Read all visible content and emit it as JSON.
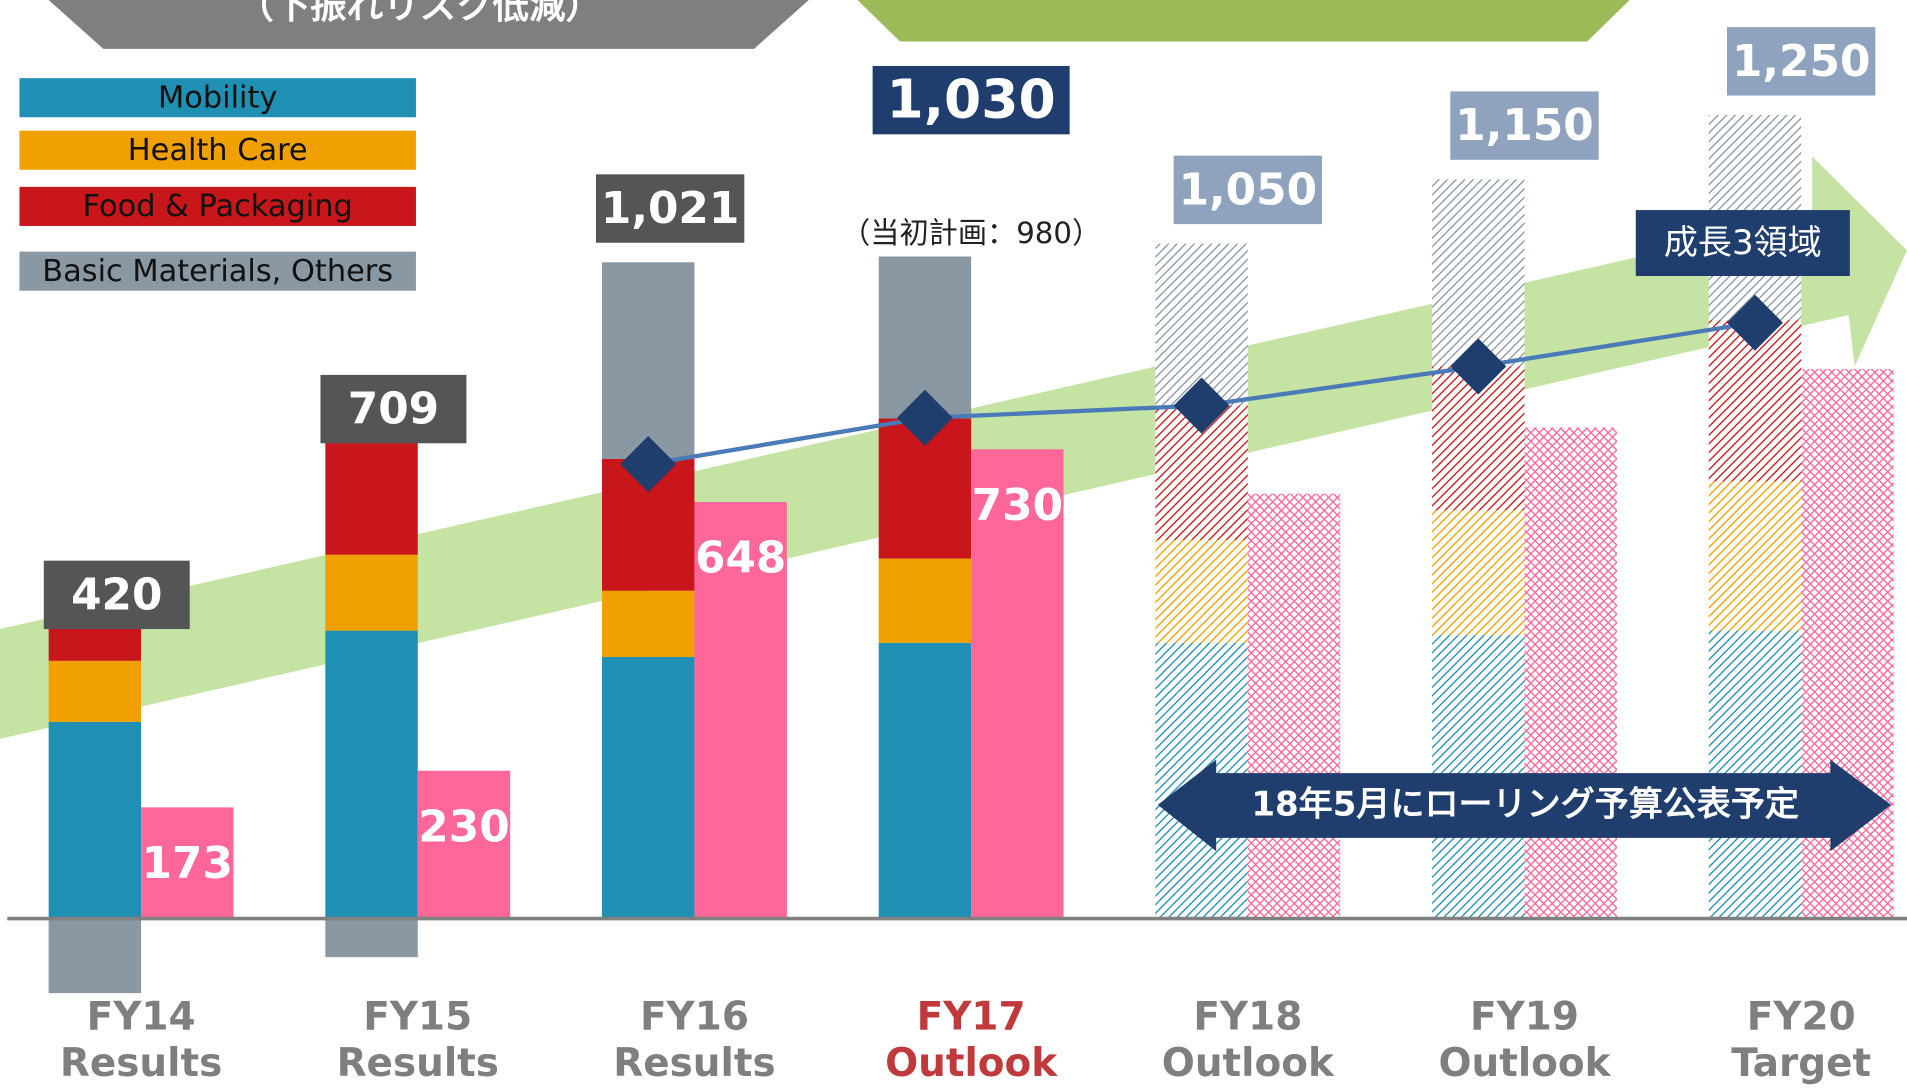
{
  "chart_data": {
    "type": "stacked_bar",
    "banner": "（下振れリスク低減）",
    "categories": [
      "FY14 Results",
      "FY15 Results",
      "FY16 Results",
      "FY17 Outlook",
      "FY18 Outlook",
      "FY19 Outlook",
      "FY20 Target"
    ],
    "highlight_index": 3,
    "hatched_from": 4,
    "ylim": [
      -262,
      1429
    ],
    "series": [
      {
        "name": "Mobility",
        "color": "#1f8fb3",
        "values": [
          306,
          448,
          407,
          429,
          429,
          441,
          448
        ]
      },
      {
        "name": "Health Care",
        "color": "#f0a000",
        "values": [
          95,
          118,
          103,
          131,
          160,
          194,
          232
        ]
      },
      {
        "name": "Food & Packaging",
        "color": "#c8161b",
        "values": [
          135,
          203,
          205,
          218,
          209,
          224,
          251
        ]
      },
      {
        "name": "Basic Materials, Others",
        "color": "#8a98a3",
        "values": [
          -116,
          -60,
          306,
          252,
          252,
          291,
          319
        ]
      }
    ],
    "totals": [
      420,
      709,
      1021,
      1030,
      1050,
      1150,
      1250
    ],
    "total_labels": [
      "420",
      "709",
      "1,021",
      "1,030",
      "1,050",
      "1,150",
      "1,250"
    ],
    "side_bars": {
      "color": "#ff6699",
      "values": [
        173,
        230,
        648,
        730,
        661,
        764,
        855
      ],
      "value_labels": [
        "173",
        "230",
        "648",
        "730",
        null,
        null,
        null
      ]
    },
    "line": {
      "color": "#4a7ab8",
      "marker_color": "#1f3e6e",
      "values": [
        null,
        null,
        707,
        779,
        798,
        859,
        927
      ]
    },
    "annotations": {
      "original_plan": "（当初計画：980）",
      "growth_label": "成長3領域",
      "rolling_note": "18年5月にローリング予算公表予定"
    }
  }
}
